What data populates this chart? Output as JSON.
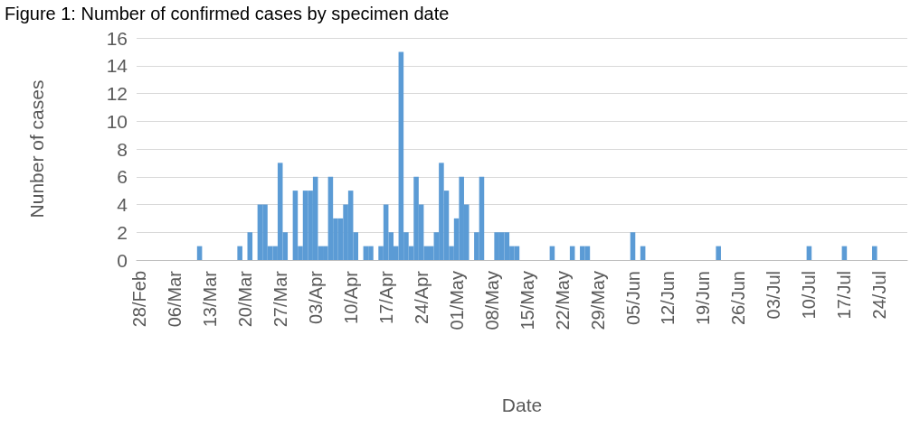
{
  "chart_data": {
    "type": "bar",
    "title": "Figure 1: Number of confirmed cases by specimen date",
    "xlabel": "Date",
    "ylabel": "Nunber of cases",
    "categories": [
      "28/Feb",
      null,
      null,
      null,
      null,
      null,
      null,
      "06/Mar",
      null,
      null,
      null,
      null,
      null,
      null,
      "13/Mar",
      null,
      null,
      null,
      null,
      null,
      null,
      "20/Mar",
      null,
      null,
      null,
      null,
      null,
      null,
      "27/Mar",
      null,
      null,
      null,
      null,
      null,
      null,
      "03/Apr",
      null,
      null,
      null,
      null,
      null,
      null,
      "10/Apr",
      null,
      null,
      null,
      null,
      null,
      null,
      "17/Apr",
      null,
      null,
      null,
      null,
      null,
      null,
      "24/Apr",
      null,
      null,
      null,
      null,
      null,
      null,
      "01/May",
      null,
      null,
      null,
      null,
      null,
      null,
      "08/May",
      null,
      null,
      null,
      null,
      null,
      null,
      "15/May",
      null,
      null,
      null,
      null,
      null,
      null,
      "22/May",
      null,
      null,
      null,
      null,
      null,
      null,
      "29/May",
      null,
      null,
      null,
      null,
      null,
      null,
      "05/Jun",
      null,
      null,
      null,
      null,
      null,
      null,
      "12/Jun",
      null,
      null,
      null,
      null,
      null,
      null,
      "19/Jun",
      null,
      null,
      null,
      null,
      null,
      null,
      "26/Jun",
      null,
      null,
      null,
      null,
      null,
      null,
      "03/Jul",
      null,
      null,
      null,
      null,
      null,
      null,
      "10/Jul",
      null,
      null,
      null,
      null,
      null,
      null,
      "17/Jul",
      null,
      null,
      null,
      null,
      null,
      null,
      "24/Jul",
      null,
      null,
      null,
      null,
      null
    ],
    "values": [
      0,
      0,
      0,
      0,
      0,
      0,
      0,
      0,
      0,
      0,
      0,
      0,
      1,
      0,
      0,
      0,
      0,
      0,
      0,
      0,
      1,
      0,
      2,
      0,
      4,
      4,
      1,
      1,
      7,
      2,
      0,
      5,
      1,
      5,
      5,
      6,
      1,
      1,
      6,
      3,
      3,
      4,
      5,
      2,
      0,
      1,
      1,
      0,
      1,
      4,
      2,
      1,
      15,
      2,
      1,
      6,
      4,
      1,
      1,
      2,
      7,
      5,
      1,
      3,
      6,
      4,
      0,
      2,
      6,
      0,
      0,
      2,
      2,
      2,
      1,
      1,
      0,
      0,
      0,
      0,
      0,
      0,
      1,
      0,
      0,
      0,
      1,
      0,
      1,
      1,
      0,
      0,
      0,
      0,
      0,
      0,
      0,
      0,
      2,
      0,
      1,
      0,
      0,
      0,
      0,
      0,
      0,
      0,
      0,
      0,
      0,
      0,
      0,
      0,
      0,
      1,
      0,
      0,
      0,
      0,
      0,
      0,
      0,
      0,
      0,
      0,
      0,
      0,
      0,
      0,
      0,
      0,
      0,
      1,
      0,
      0,
      0,
      0,
      0,
      0,
      1,
      0,
      0,
      0,
      0,
      0,
      1,
      0,
      0,
      0,
      0,
      0,
      0
    ],
    "color": "#5b9bd5",
    "ylim": [
      0,
      16
    ],
    "yticks": [
      0,
      2,
      4,
      6,
      8,
      10,
      12,
      14,
      16
    ],
    "grid": "y"
  }
}
